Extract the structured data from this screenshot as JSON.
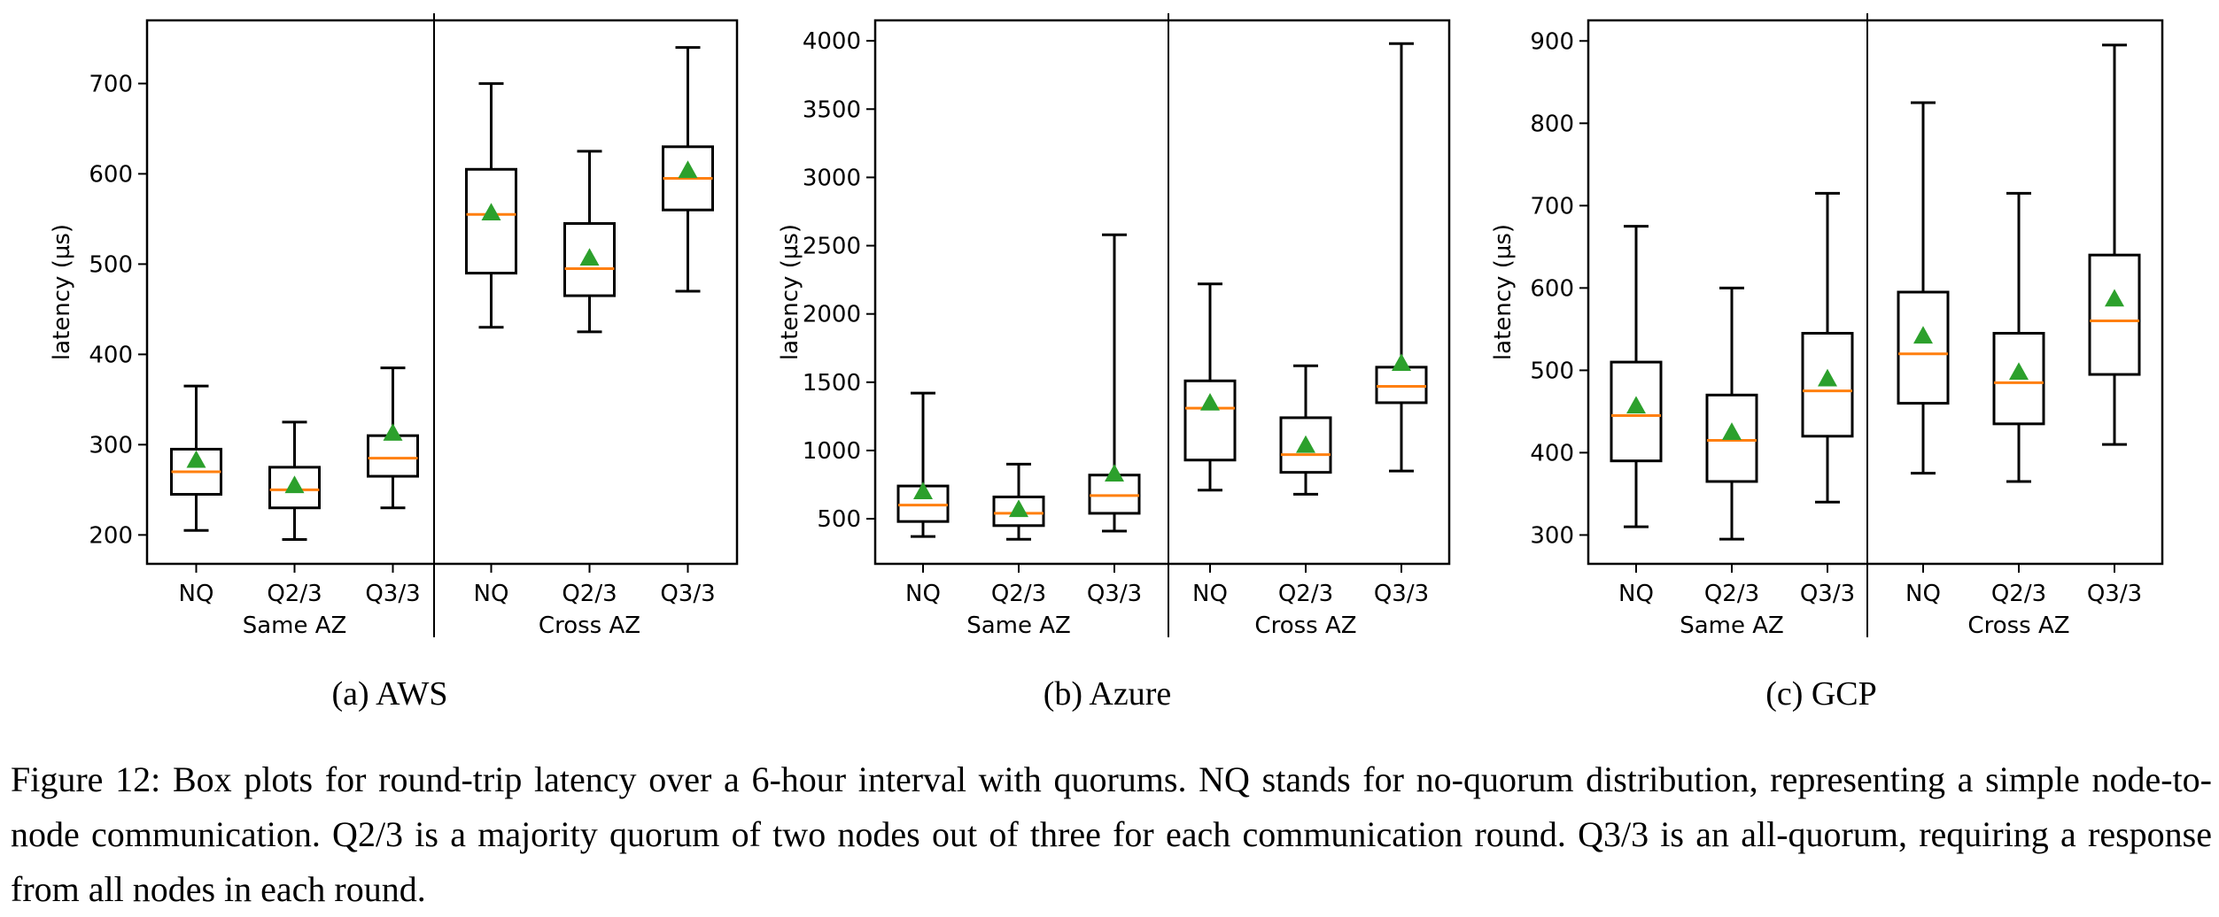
{
  "chart_data": [
    {
      "type": "box",
      "subcaption": "(a) AWS",
      "ylabel": "latency (µs)",
      "ylim": [
        168,
        770
      ],
      "yticks": [
        200,
        300,
        400,
        500,
        600,
        700
      ],
      "groups": [
        "Same AZ",
        "Cross AZ"
      ],
      "categories": [
        "NQ",
        "Q2/3",
        "Q3/3",
        "NQ",
        "Q2/3",
        "Q3/3"
      ],
      "boxes": [
        {
          "group": "Same AZ",
          "label": "NQ",
          "whisker_low": 205,
          "q1": 245,
          "median": 270,
          "q3": 295,
          "whisker_high": 365,
          "mean": 283
        },
        {
          "group": "Same AZ",
          "label": "Q2/3",
          "whisker_low": 195,
          "q1": 230,
          "median": 250,
          "q3": 275,
          "whisker_high": 325,
          "mean": 255
        },
        {
          "group": "Same AZ",
          "label": "Q3/3",
          "whisker_low": 230,
          "q1": 265,
          "median": 285,
          "q3": 310,
          "whisker_high": 385,
          "mean": 313
        },
        {
          "group": "Cross AZ",
          "label": "NQ",
          "whisker_low": 430,
          "q1": 490,
          "median": 555,
          "q3": 605,
          "whisker_high": 700,
          "mean": 557
        },
        {
          "group": "Cross AZ",
          "label": "Q2/3",
          "whisker_low": 425,
          "q1": 465,
          "median": 495,
          "q3": 545,
          "whisker_high": 625,
          "mean": 507
        },
        {
          "group": "Cross AZ",
          "label": "Q3/3",
          "whisker_low": 470,
          "q1": 560,
          "median": 595,
          "q3": 630,
          "whisker_high": 740,
          "mean": 604
        }
      ]
    },
    {
      "type": "box",
      "subcaption": "(b) Azure",
      "ylabel": "latency (µs)",
      "ylim": [
        170,
        4150
      ],
      "yticks": [
        500,
        1000,
        1500,
        2000,
        2500,
        3000,
        3500,
        4000
      ],
      "groups": [
        "Same AZ",
        "Cross AZ"
      ],
      "categories": [
        "NQ",
        "Q2/3",
        "Q3/3",
        "NQ",
        "Q2/3",
        "Q3/3"
      ],
      "boxes": [
        {
          "group": "Same AZ",
          "label": "NQ",
          "whisker_low": 370,
          "q1": 480,
          "median": 600,
          "q3": 740,
          "whisker_high": 1420,
          "mean": 700
        },
        {
          "group": "Same AZ",
          "label": "Q2/3",
          "whisker_low": 350,
          "q1": 450,
          "median": 540,
          "q3": 660,
          "whisker_high": 900,
          "mean": 570
        },
        {
          "group": "Same AZ",
          "label": "Q3/3",
          "whisker_low": 410,
          "q1": 540,
          "median": 670,
          "q3": 820,
          "whisker_high": 2580,
          "mean": 830
        },
        {
          "group": "Cross AZ",
          "label": "NQ",
          "whisker_low": 710,
          "q1": 930,
          "median": 1310,
          "q3": 1510,
          "whisker_high": 2220,
          "mean": 1350
        },
        {
          "group": "Cross AZ",
          "label": "Q2/3",
          "whisker_low": 680,
          "q1": 840,
          "median": 970,
          "q3": 1240,
          "whisker_high": 1620,
          "mean": 1040
        },
        {
          "group": "Cross AZ",
          "label": "Q3/3",
          "whisker_low": 850,
          "q1": 1350,
          "median": 1470,
          "q3": 1610,
          "whisker_high": 3980,
          "mean": 1640
        }
      ]
    },
    {
      "type": "box",
      "subcaption": "(c) GCP",
      "ylabel": "latency (µs)",
      "ylim": [
        265,
        925
      ],
      "yticks": [
        300,
        400,
        500,
        600,
        700,
        800,
        900
      ],
      "groups": [
        "Same AZ",
        "Cross AZ"
      ],
      "categories": [
        "NQ",
        "Q2/3",
        "Q3/3",
        "NQ",
        "Q2/3",
        "Q3/3"
      ],
      "boxes": [
        {
          "group": "Same AZ",
          "label": "NQ",
          "whisker_low": 310,
          "q1": 390,
          "median": 445,
          "q3": 510,
          "whisker_high": 675,
          "mean": 457
        },
        {
          "group": "Same AZ",
          "label": "Q2/3",
          "whisker_low": 295,
          "q1": 365,
          "median": 415,
          "q3": 470,
          "whisker_high": 600,
          "mean": 425
        },
        {
          "group": "Same AZ",
          "label": "Q3/3",
          "whisker_low": 340,
          "q1": 420,
          "median": 475,
          "q3": 545,
          "whisker_high": 715,
          "mean": 490
        },
        {
          "group": "Cross AZ",
          "label": "NQ",
          "whisker_low": 375,
          "q1": 460,
          "median": 520,
          "q3": 595,
          "whisker_high": 825,
          "mean": 542
        },
        {
          "group": "Cross AZ",
          "label": "Q2/3",
          "whisker_low": 365,
          "q1": 435,
          "median": 485,
          "q3": 545,
          "whisker_high": 715,
          "mean": 498
        },
        {
          "group": "Cross AZ",
          "label": "Q3/3",
          "whisker_low": 410,
          "q1": 495,
          "median": 560,
          "q3": 640,
          "whisker_high": 895,
          "mean": 587
        }
      ]
    }
  ],
  "caption": "Figure 12: Box plots for round-trip latency over a 6-hour interval with quorums. NQ stands for no-quorum distribution, representing a simple node-to-node communication. Q2/3 is a majority quorum of two nodes out of three for each communication round. Q3/3 is an all-quorum, requiring a response from all nodes in each round.",
  "colors": {
    "median": "#ff7f0e",
    "mean": "#2ca02c",
    "box": "#000000"
  }
}
